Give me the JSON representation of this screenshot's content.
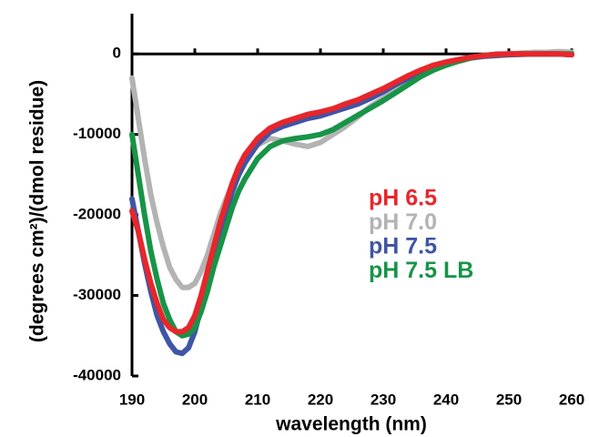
{
  "chart_data": {
    "type": "line",
    "x_label": "wavelength (nm)",
    "y_label": "(degrees cm²)/(dmol residue)",
    "x": [
      190,
      191,
      192,
      193,
      194,
      195,
      196,
      197,
      198,
      199,
      200,
      201,
      202,
      203,
      204,
      205,
      206,
      207,
      208,
      210,
      212,
      214,
      216,
      218,
      220,
      222,
      224,
      226,
      228,
      230,
      232,
      234,
      236,
      238,
      240,
      242,
      244,
      246,
      248,
      250,
      252,
      254,
      256,
      258,
      260
    ],
    "series": [
      {
        "name": "pH 6.5",
        "color": "#e8262b",
        "values": [
          -19500,
          -22000,
          -25500,
          -28500,
          -31000,
          -33000,
          -34000,
          -34500,
          -34500,
          -34000,
          -32500,
          -30000,
          -27000,
          -24000,
          -21000,
          -18500,
          -16000,
          -14000,
          -12500,
          -10500,
          -9200,
          -8500,
          -8000,
          -7500,
          -7200,
          -6800,
          -6200,
          -5700,
          -5000,
          -4300,
          -3500,
          -2700,
          -2000,
          -1400,
          -1000,
          -700,
          -400,
          -200,
          -50,
          0,
          0,
          0,
          0,
          0,
          -100
        ]
      },
      {
        "name": "pH 7.0",
        "color": "#b3b3b3",
        "values": [
          -3000,
          -8000,
          -13000,
          -17500,
          -21000,
          -24000,
          -26500,
          -28000,
          -29000,
          -29000,
          -28500,
          -27000,
          -25000,
          -22500,
          -20000,
          -18000,
          -16000,
          -14500,
          -13000,
          -11300,
          -10500,
          -10800,
          -11200,
          -11500,
          -11000,
          -10000,
          -9000,
          -7800,
          -6500,
          -5500,
          -4500,
          -3500,
          -2600,
          -1800,
          -1200,
          -800,
          -500,
          -200,
          0,
          0,
          100,
          200,
          200,
          300,
          200
        ]
      },
      {
        "name": "pH 7.5",
        "color": "#3f55a5",
        "values": [
          -18000,
          -22000,
          -26000,
          -29500,
          -32500,
          -34500,
          -36000,
          -37000,
          -37200,
          -36500,
          -34500,
          -31500,
          -28500,
          -25000,
          -22000,
          -19500,
          -17000,
          -15000,
          -13500,
          -11200,
          -9700,
          -9000,
          -8500,
          -8000,
          -7700,
          -7200,
          -6700,
          -6200,
          -5500,
          -4700,
          -3800,
          -3000,
          -2200,
          -1600,
          -1100,
          -800,
          -500,
          -300,
          -200,
          -100,
          -50,
          0,
          0,
          0,
          -100
        ]
      },
      {
        "name": "pH 7.5 LB",
        "color": "#179447",
        "values": [
          -10000,
          -15000,
          -20000,
          -24500,
          -28000,
          -31000,
          -33000,
          -34500,
          -35000,
          -34800,
          -34000,
          -32000,
          -29500,
          -26500,
          -24000,
          -21500,
          -19000,
          -17000,
          -15500,
          -13000,
          -11500,
          -10800,
          -10500,
          -10300,
          -10000,
          -9400,
          -8500,
          -7600,
          -6700,
          -5800,
          -4800,
          -3800,
          -2800,
          -2000,
          -1400,
          -900,
          -500,
          -200,
          -100,
          0,
          0,
          0,
          0,
          0,
          0
        ]
      }
    ],
    "xlim": [
      190,
      260
    ],
    "ylim": [
      -40000,
      5000
    ],
    "xticks": [
      190,
      200,
      210,
      220,
      230,
      240,
      250,
      260
    ],
    "yticks": [
      -40000,
      -30000,
      -20000,
      -10000,
      0
    ]
  }
}
